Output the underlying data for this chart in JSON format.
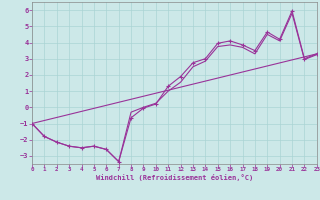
{
  "xlabel": "Windchill (Refroidissement éolien,°C)",
  "xlim": [
    0,
    23
  ],
  "ylim": [
    -3.5,
    6.5
  ],
  "yticks": [
    -3,
    -2,
    -1,
    0,
    1,
    2,
    3,
    4,
    5,
    6
  ],
  "xticks": [
    0,
    1,
    2,
    3,
    4,
    5,
    6,
    7,
    8,
    9,
    10,
    11,
    12,
    13,
    14,
    15,
    16,
    17,
    18,
    19,
    20,
    21,
    22,
    23
  ],
  "bg_color": "#cce8e8",
  "line_color": "#993399",
  "grid_color": "#aad4d4",
  "line1_x": [
    0,
    1,
    2,
    3,
    4,
    5,
    6,
    7,
    8,
    9,
    10,
    11,
    12,
    13,
    14,
    15,
    16,
    17,
    18,
    19,
    20,
    21,
    22,
    23
  ],
  "line1_y": [
    -1.0,
    -1.8,
    -2.15,
    -2.4,
    -2.5,
    -2.4,
    -2.6,
    -3.35,
    -0.65,
    -0.05,
    0.2,
    1.3,
    1.9,
    2.75,
    3.0,
    3.95,
    4.1,
    3.85,
    3.5,
    4.65,
    4.2,
    5.95,
    3.0,
    3.3
  ],
  "line2_x": [
    0,
    1,
    2,
    3,
    4,
    5,
    6,
    7,
    8,
    9,
    10,
    11,
    12,
    13,
    14,
    15,
    16,
    17,
    18,
    19,
    20,
    21,
    22,
    23
  ],
  "line2_y": [
    -1.0,
    -1.8,
    -2.15,
    -2.4,
    -2.5,
    -2.4,
    -2.6,
    -3.35,
    -0.3,
    0.0,
    0.25,
    1.0,
    1.55,
    2.5,
    2.85,
    3.75,
    3.85,
    3.7,
    3.3,
    4.5,
    4.1,
    5.8,
    2.95,
    3.25
  ],
  "line3_x": [
    0,
    23
  ],
  "line3_y": [
    -1.0,
    3.3
  ]
}
